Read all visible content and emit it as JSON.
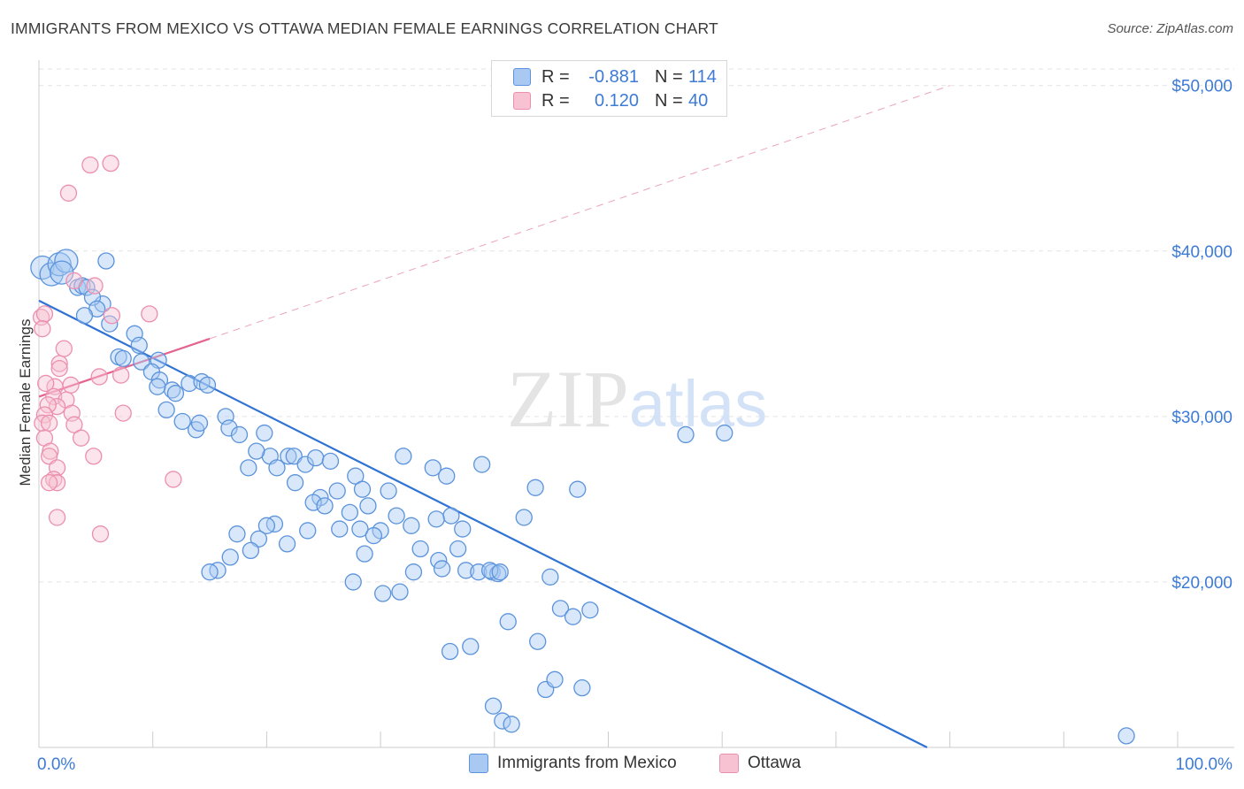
{
  "title": "IMMIGRANTS FROM MEXICO VS OTTAWA MEDIAN FEMALE EARNINGS CORRELATION CHART",
  "source": "Source: ZipAtlas.com",
  "legend": {
    "rows": [
      {
        "r_label": "R =",
        "r_value": "-0.881",
        "n_label": "N =",
        "n_value": "114"
      },
      {
        "r_label": "R =",
        "r_value": "0.120",
        "n_label": "N =",
        "n_value": "40"
      }
    ]
  },
  "bottom_legend": [
    {
      "label": "Immigrants from Mexico"
    },
    {
      "label": "Ottawa"
    }
  ],
  "chart_data": {
    "type": "scatter",
    "title": "IMMIGRANTS FROM MEXICO VS OTTAWA MEDIAN FEMALE EARNINGS CORRELATION CHART",
    "xlabel": "",
    "ylabel": "Median Female Earnings",
    "xlim": [
      0,
      100
    ],
    "ylim": [
      10000,
      51000
    ],
    "x_tick_labels": [
      {
        "value": 0,
        "label": "0.0%"
      },
      {
        "value": 100,
        "label": "100.0%"
      }
    ],
    "y_tick_labels": [
      {
        "value": 20000,
        "label": "$20,000"
      },
      {
        "value": 30000,
        "label": "$30,000"
      },
      {
        "value": 40000,
        "label": "$40,000"
      },
      {
        "value": 50000,
        "label": "$50,000"
      }
    ],
    "grid": true,
    "watermark": "ZIPatlas",
    "colors": {
      "blue_fill": "#a9c9f2",
      "blue_stroke": "#5b93dc",
      "blue_line": "#2f73d4",
      "pink_fill": "#f7c3d3",
      "pink_stroke": "#ec8faf",
      "pink_line": "#e4638f",
      "tick_color": "#3d7bd6"
    },
    "series": [
      {
        "name": "Immigrants from Mexico",
        "color": "#5b93dc",
        "points": [
          [
            0.3,
            39000
          ],
          [
            1.1,
            38600
          ],
          [
            1.8,
            39200
          ],
          [
            2.4,
            39400
          ],
          [
            2.0,
            38700
          ],
          [
            3.4,
            37800
          ],
          [
            3.8,
            37900
          ],
          [
            4.2,
            37800
          ],
          [
            5.9,
            39400
          ],
          [
            5.6,
            36800
          ],
          [
            4.7,
            37200
          ],
          [
            5.1,
            36500
          ],
          [
            4.0,
            36100
          ],
          [
            6.2,
            35600
          ],
          [
            8.4,
            35000
          ],
          [
            8.8,
            34300
          ],
          [
            7.0,
            33600
          ],
          [
            7.4,
            33500
          ],
          [
            9.0,
            33300
          ],
          [
            10.5,
            33400
          ],
          [
            9.9,
            32700
          ],
          [
            10.6,
            32200
          ],
          [
            11.7,
            31600
          ],
          [
            13.2,
            32000
          ],
          [
            14.3,
            32100
          ],
          [
            14.8,
            31900
          ],
          [
            10.4,
            31800
          ],
          [
            12.0,
            31400
          ],
          [
            11.2,
            30400
          ],
          [
            12.6,
            29700
          ],
          [
            13.8,
            29200
          ],
          [
            14.1,
            29600
          ],
          [
            16.4,
            30000
          ],
          [
            16.7,
            29300
          ],
          [
            17.6,
            28900
          ],
          [
            19.8,
            29000
          ],
          [
            20.3,
            27600
          ],
          [
            19.1,
            27900
          ],
          [
            18.4,
            26900
          ],
          [
            21.9,
            27600
          ],
          [
            22.4,
            27600
          ],
          [
            20.9,
            26900
          ],
          [
            23.4,
            27100
          ],
          [
            22.5,
            26000
          ],
          [
            24.3,
            27500
          ],
          [
            25.6,
            27300
          ],
          [
            26.2,
            25500
          ],
          [
            27.8,
            26400
          ],
          [
            24.7,
            25100
          ],
          [
            24.1,
            24800
          ],
          [
            28.4,
            25600
          ],
          [
            30.7,
            25500
          ],
          [
            32.0,
            27600
          ],
          [
            34.6,
            26900
          ],
          [
            35.8,
            26400
          ],
          [
            38.9,
            27100
          ],
          [
            36.2,
            24000
          ],
          [
            34.9,
            23800
          ],
          [
            37.2,
            23200
          ],
          [
            32.7,
            23400
          ],
          [
            30.0,
            23100
          ],
          [
            28.2,
            23200
          ],
          [
            29.4,
            22800
          ],
          [
            31.4,
            24000
          ],
          [
            33.5,
            22000
          ],
          [
            35.1,
            21300
          ],
          [
            36.8,
            22000
          ],
          [
            37.5,
            20700
          ],
          [
            38.6,
            20600
          ],
          [
            39.8,
            20600
          ],
          [
            40.3,
            20500
          ],
          [
            39.6,
            20700
          ],
          [
            35.4,
            20800
          ],
          [
            32.9,
            20600
          ],
          [
            31.7,
            19400
          ],
          [
            30.2,
            19300
          ],
          [
            28.6,
            21700
          ],
          [
            27.6,
            20000
          ],
          [
            40.5,
            20600
          ],
          [
            42.6,
            23900
          ],
          [
            43.6,
            25700
          ],
          [
            47.3,
            25600
          ],
          [
            45.8,
            18400
          ],
          [
            48.4,
            18300
          ],
          [
            46.9,
            17900
          ],
          [
            41.2,
            17600
          ],
          [
            43.8,
            16400
          ],
          [
            37.9,
            16100
          ],
          [
            36.1,
            15800
          ],
          [
            44.5,
            13500
          ],
          [
            45.3,
            14100
          ],
          [
            47.7,
            13600
          ],
          [
            39.9,
            12500
          ],
          [
            40.7,
            11600
          ],
          [
            41.5,
            11400
          ],
          [
            56.8,
            28900
          ],
          [
            60.2,
            29000
          ],
          [
            28.9,
            24600
          ],
          [
            27.3,
            24200
          ],
          [
            26.4,
            23200
          ],
          [
            25.1,
            24600
          ],
          [
            23.6,
            23100
          ],
          [
            21.8,
            22300
          ],
          [
            20.7,
            23500
          ],
          [
            20.0,
            23400
          ],
          [
            19.3,
            22600
          ],
          [
            18.6,
            21900
          ],
          [
            17.4,
            22900
          ],
          [
            16.8,
            21500
          ],
          [
            15.7,
            20700
          ],
          [
            15.0,
            20600
          ],
          [
            44.9,
            20300
          ],
          [
            95.5,
            10700
          ]
        ]
      },
      {
        "name": "Ottawa",
        "color": "#ec8faf",
        "points": [
          [
            4.5,
            45200
          ],
          [
            6.3,
            45300
          ],
          [
            2.6,
            43500
          ],
          [
            0.2,
            36000
          ],
          [
            0.5,
            36200
          ],
          [
            0.3,
            35300
          ],
          [
            2.2,
            34100
          ],
          [
            4.9,
            37900
          ],
          [
            6.4,
            36100
          ],
          [
            9.7,
            36200
          ],
          [
            3.1,
            38200
          ],
          [
            1.8,
            33200
          ],
          [
            1.8,
            32900
          ],
          [
            2.8,
            31900
          ],
          [
            1.4,
            31800
          ],
          [
            0.6,
            32000
          ],
          [
            1.3,
            31200
          ],
          [
            2.4,
            31000
          ],
          [
            1.6,
            30600
          ],
          [
            2.9,
            30200
          ],
          [
            3.1,
            29500
          ],
          [
            0.8,
            30700
          ],
          [
            0.5,
            30100
          ],
          [
            0.3,
            29600
          ],
          [
            0.9,
            29600
          ],
          [
            0.5,
            28700
          ],
          [
            3.7,
            28700
          ],
          [
            1.0,
            27900
          ],
          [
            0.9,
            27600
          ],
          [
            4.8,
            27600
          ],
          [
            1.6,
            26900
          ],
          [
            1.3,
            26200
          ],
          [
            1.6,
            26000
          ],
          [
            0.9,
            26000
          ],
          [
            5.3,
            32400
          ],
          [
            7.2,
            32500
          ],
          [
            7.4,
            30200
          ],
          [
            11.8,
            26200
          ],
          [
            1.6,
            23900
          ],
          [
            5.4,
            22900
          ]
        ]
      }
    ],
    "trend_lines": [
      {
        "series": "Immigrants from Mexico",
        "x": [
          0,
          78
        ],
        "y": [
          37000,
          10000
        ],
        "style": "solid"
      },
      {
        "series": "Ottawa",
        "x": [
          0,
          15
        ],
        "y": [
          31200,
          34700
        ],
        "style": "solid"
      },
      {
        "series": "Ottawa",
        "x": [
          15,
          80
        ],
        "y": [
          34700,
          50000
        ],
        "style": "dashed"
      }
    ]
  }
}
